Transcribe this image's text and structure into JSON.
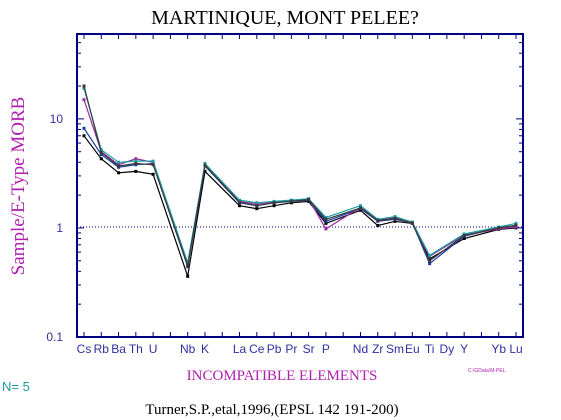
{
  "title": "MARTINIQUE, MONT PELEE?",
  "count_label": "N= 5",
  "citation": "Turner,S.P.,etal,1996,(EPSL 142 191-200)",
  "file_ref": "C:\\GData\\M-PEL",
  "colors": {
    "axis": "#000080",
    "reference_line": "#000080",
    "title": "#000000",
    "labels": "#b020b0",
    "ticks": "#3030a0",
    "count": "#1a9aa0"
  },
  "chart_data": {
    "type": "line",
    "title": "MARTINIQUE, MONT PELEE?",
    "xlabel": "INCOMPATIBLE ELEMENTS",
    "ylabel": "Sample/E-Type MORB",
    "y_scale": "log",
    "ylim": [
      0.1,
      60
    ],
    "y_ticks": [
      0.1,
      1,
      10
    ],
    "y_tick_labels": [
      "0.1",
      "1",
      "10"
    ],
    "reference_line": 1,
    "categories": [
      "Cs",
      "Rb",
      "Ba",
      "Th",
      "U",
      "Nb",
      "K",
      "La",
      "Ce",
      "Pb",
      "Pr",
      "Sr",
      "P",
      "Nd",
      "Zr",
      "Sm",
      "Eu",
      "Ti",
      "Dy",
      "Y",
      "Yb",
      "Lu"
    ],
    "x_tick_labels": [
      "Cs",
      "Rb",
      "Ba",
      "Th",
      "U",
      "",
      "Nb",
      "K",
      "",
      "La",
      "Ce",
      "Pb",
      "Pr",
      "Sr",
      "P",
      "",
      "Nd",
      "Zr",
      "Sm",
      "Eu",
      "Ti",
      "Dy",
      "Y",
      "",
      "Yb",
      "Lu"
    ],
    "series": [
      {
        "color": "#000000",
        "points": [
          [
            "Cs",
            7.0
          ],
          [
            "Rb",
            4.3
          ],
          [
            "Ba",
            3.2
          ],
          [
            "Th",
            3.3
          ],
          [
            "U",
            3.1
          ],
          [
            "Nb",
            0.36
          ],
          [
            "K",
            3.3
          ],
          [
            "La",
            1.6
          ],
          [
            "Ce",
            1.5
          ],
          [
            "Pb",
            1.6
          ],
          [
            "Pr",
            1.7
          ],
          [
            "Sr",
            1.75
          ],
          [
            "P",
            1.1
          ],
          [
            "Nd",
            1.45
          ],
          [
            "Zr",
            1.05
          ],
          [
            "Sm",
            1.15
          ],
          [
            "Eu",
            1.1
          ],
          [
            "Ti",
            0.52
          ],
          [
            "Y",
            0.8
          ],
          [
            "Yb",
            0.97
          ],
          [
            "Lu",
            1.0
          ]
        ]
      },
      {
        "color": "#1a3aa0",
        "points": [
          [
            "Cs",
            8.2
          ],
          [
            "Rb",
            4.7
          ],
          [
            "Ba",
            3.6
          ],
          [
            "Th",
            3.8
          ],
          [
            "U",
            3.9
          ],
          [
            "Nb",
            0.44
          ],
          [
            "K",
            3.7
          ],
          [
            "La",
            1.7
          ],
          [
            "Ce",
            1.6
          ],
          [
            "Pb",
            1.7
          ],
          [
            "Pr",
            1.75
          ],
          [
            "Sr",
            1.8
          ],
          [
            "P",
            1.15
          ],
          [
            "Nd",
            1.5
          ],
          [
            "Zr",
            1.15
          ],
          [
            "Sm",
            1.2
          ],
          [
            "Eu",
            1.12
          ],
          [
            "Ti",
            0.47
          ],
          [
            "Y",
            0.84
          ],
          [
            "Yb",
            1.0
          ],
          [
            "Lu",
            1.05
          ]
        ]
      },
      {
        "color": "#9a2aa0",
        "points": [
          [
            "Cs",
            15.0
          ],
          [
            "Rb",
            5.0
          ],
          [
            "Ba",
            3.8
          ],
          [
            "Th",
            4.3
          ],
          [
            "U",
            4.0
          ],
          [
            "Nb",
            0.46
          ],
          [
            "K",
            3.8
          ],
          [
            "La",
            1.75
          ],
          [
            "Ce",
            1.65
          ],
          [
            "Pb",
            1.72
          ],
          [
            "Pr",
            1.78
          ],
          [
            "Sr",
            1.85
          ],
          [
            "P",
            0.98
          ],
          [
            "Nd",
            1.55
          ],
          [
            "Zr",
            1.18
          ],
          [
            "Sm",
            1.25
          ],
          [
            "Eu",
            1.1
          ],
          [
            "Ti",
            0.55
          ],
          [
            "Y",
            0.86
          ],
          [
            "Yb",
            0.98
          ],
          [
            "Lu",
            1.02
          ]
        ]
      },
      {
        "color": "#1aa0a0",
        "points": [
          [
            "Cs",
            19.0
          ],
          [
            "Rb",
            5.2
          ],
          [
            "Ba",
            4.0
          ],
          [
            "Th",
            4.1
          ],
          [
            "U",
            4.1
          ],
          [
            "Nb",
            0.48
          ],
          [
            "K",
            3.9
          ],
          [
            "La",
            1.8
          ],
          [
            "Ce",
            1.7
          ],
          [
            "Pb",
            1.75
          ],
          [
            "Pr",
            1.8
          ],
          [
            "Sr",
            1.85
          ],
          [
            "P",
            1.25
          ],
          [
            "Nd",
            1.6
          ],
          [
            "Zr",
            1.2
          ],
          [
            "Sm",
            1.27
          ],
          [
            "Eu",
            1.13
          ],
          [
            "Ti",
            0.56
          ],
          [
            "Y",
            0.88
          ],
          [
            "Yb",
            1.02
          ],
          [
            "Lu",
            1.1
          ]
        ]
      },
      {
        "color": "#3a3a3a",
        "points": [
          [
            "Cs",
            20.0
          ],
          [
            "Rb",
            4.9
          ],
          [
            "Ba",
            3.7
          ],
          [
            "Th",
            3.9
          ],
          [
            "U",
            3.8
          ],
          [
            "Nb",
            0.45
          ],
          [
            "K",
            3.75
          ],
          [
            "La",
            1.72
          ],
          [
            "Ce",
            1.6
          ],
          [
            "Pb",
            1.7
          ],
          [
            "Pr",
            1.76
          ],
          [
            "Sr",
            1.82
          ],
          [
            "P",
            1.2
          ],
          [
            "Nd",
            1.52
          ],
          [
            "Zr",
            1.17
          ],
          [
            "Sm",
            1.22
          ],
          [
            "Eu",
            1.11
          ],
          [
            "Ti",
            0.5
          ],
          [
            "Y",
            0.85
          ],
          [
            "Yb",
            1.0
          ],
          [
            "Lu",
            1.06
          ]
        ]
      }
    ]
  }
}
